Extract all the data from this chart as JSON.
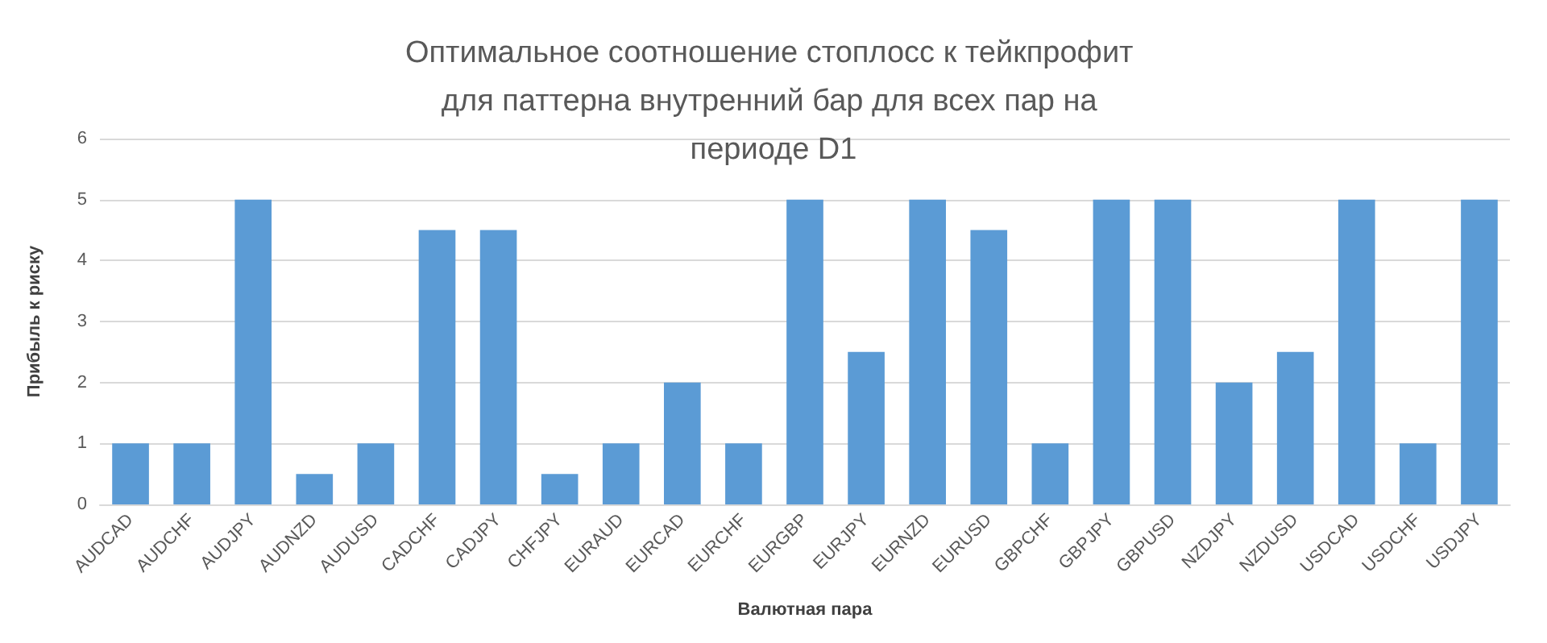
{
  "chart_data": {
    "type": "bar",
    "title": "Оптимальное соотношение стоплосс к тейкпрофит для паттерна внутренний бар для всех пар на периоде D1",
    "xlabel": "Валютная пара",
    "ylabel": "Прибыль к риску",
    "categories": [
      "AUDCAD",
      "AUDCHF",
      "AUDJPY",
      "AUDNZD",
      "AUDUSD",
      "CADCHF",
      "CADJPY",
      "CHFJPY",
      "EURAUD",
      "EURCAD",
      "EURCHF",
      "EURGBP",
      "EURJPY",
      "EURNZD",
      "EURUSD",
      "GBPCHF",
      "GBPJPY",
      "GBPUSD",
      "NZDJPY",
      "NZDUSD",
      "USDCAD",
      "USDCHF",
      "USDJPY"
    ],
    "values": [
      1,
      1,
      5,
      0.5,
      1,
      4.5,
      4.5,
      0.5,
      1,
      2,
      1,
      5,
      2.5,
      5,
      4.5,
      1,
      5,
      5,
      2,
      2.5,
      5,
      1,
      5
    ],
    "color": "#5b9bd5",
    "ylim": [
      0,
      6
    ],
    "yticks": [
      0,
      1,
      2,
      3,
      4,
      5,
      6
    ],
    "grid": "y"
  }
}
